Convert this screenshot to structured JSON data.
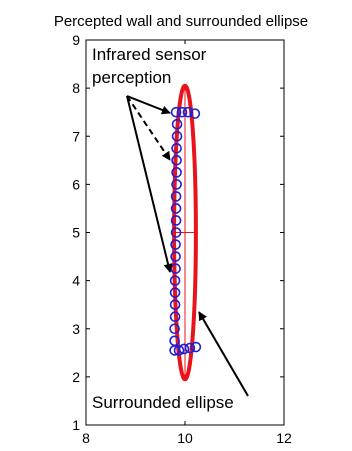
{
  "chart_data": {
    "type": "scatter",
    "title": "Percepted wall and surrounded ellipse",
    "xlabel": "",
    "ylabel": "",
    "xlim": [
      8,
      12
    ],
    "ylim": [
      1,
      9
    ],
    "xticks": [
      "8",
      "10",
      "12"
    ],
    "yticks": [
      "1",
      "2",
      "3",
      "4",
      "5",
      "6",
      "7",
      "8",
      "9"
    ],
    "grid": false,
    "series": [
      {
        "role": "sensor-points",
        "color": "#1f1fd6",
        "marker": "circle",
        "points": [
          [
            9.82,
            7.5
          ],
          [
            9.94,
            7.5
          ],
          [
            10.06,
            7.5
          ],
          [
            10.2,
            7.47
          ],
          [
            9.84,
            7.25
          ],
          [
            9.84,
            7.0
          ],
          [
            9.83,
            6.75
          ],
          [
            9.83,
            6.5
          ],
          [
            9.83,
            6.25
          ],
          [
            9.83,
            6.0
          ],
          [
            9.82,
            5.75
          ],
          [
            9.82,
            5.5
          ],
          [
            9.82,
            5.25
          ],
          [
            9.82,
            5.0
          ],
          [
            9.81,
            4.75
          ],
          [
            9.81,
            4.5
          ],
          [
            9.81,
            4.25
          ],
          [
            9.8,
            4.0
          ],
          [
            9.8,
            3.75
          ],
          [
            9.8,
            3.5
          ],
          [
            9.8,
            3.25
          ],
          [
            9.79,
            3.0
          ],
          [
            9.79,
            2.75
          ],
          [
            9.79,
            2.55
          ],
          [
            9.88,
            2.55
          ],
          [
            9.98,
            2.58
          ],
          [
            10.1,
            2.6
          ],
          [
            10.22,
            2.62
          ]
        ]
      },
      {
        "role": "surrounding-ellipse",
        "color": "#e8141c",
        "center": [
          10.0,
          5.0
        ],
        "semi_axis_x": 0.22,
        "semi_axis_y": 3.05
      }
    ],
    "annotations": [
      {
        "id": "sensor",
        "text_lines": [
          "Infrared sensor",
          "perception"
        ]
      },
      {
        "id": "ellipse",
        "text_lines": [
          "Surrounded ellipse"
        ]
      }
    ]
  }
}
